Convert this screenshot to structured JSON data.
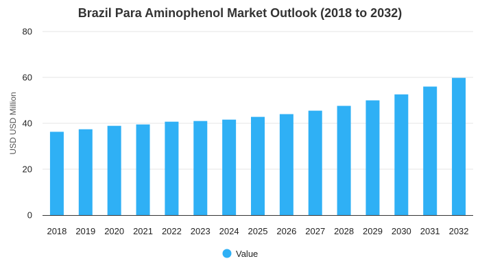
{
  "chart_data": {
    "type": "bar",
    "title": "Brazil Para Aminophenol Market Outlook (2018 to 2032)",
    "xlabel": "",
    "ylabel": "USD USD Million",
    "categories": [
      "2018",
      "2019",
      "2020",
      "2021",
      "2022",
      "2023",
      "2024",
      "2025",
      "2026",
      "2027",
      "2028",
      "2029",
      "2030",
      "2031",
      "2032"
    ],
    "series": [
      {
        "name": "Value",
        "values": [
          36.3,
          37.4,
          38.9,
          39.5,
          40.7,
          41.0,
          41.6,
          42.8,
          44.0,
          45.5,
          47.6,
          50.0,
          52.6,
          56.0,
          59.8
        ]
      }
    ],
    "ylim": [
      0,
      80
    ],
    "yticks": [
      0,
      20,
      40,
      60,
      80
    ],
    "grid": true,
    "legend_position": "bottom-center",
    "colors": {
      "bar": "#2FB0F5",
      "grid": "#E6E6E6",
      "baseline": "#333333"
    }
  }
}
